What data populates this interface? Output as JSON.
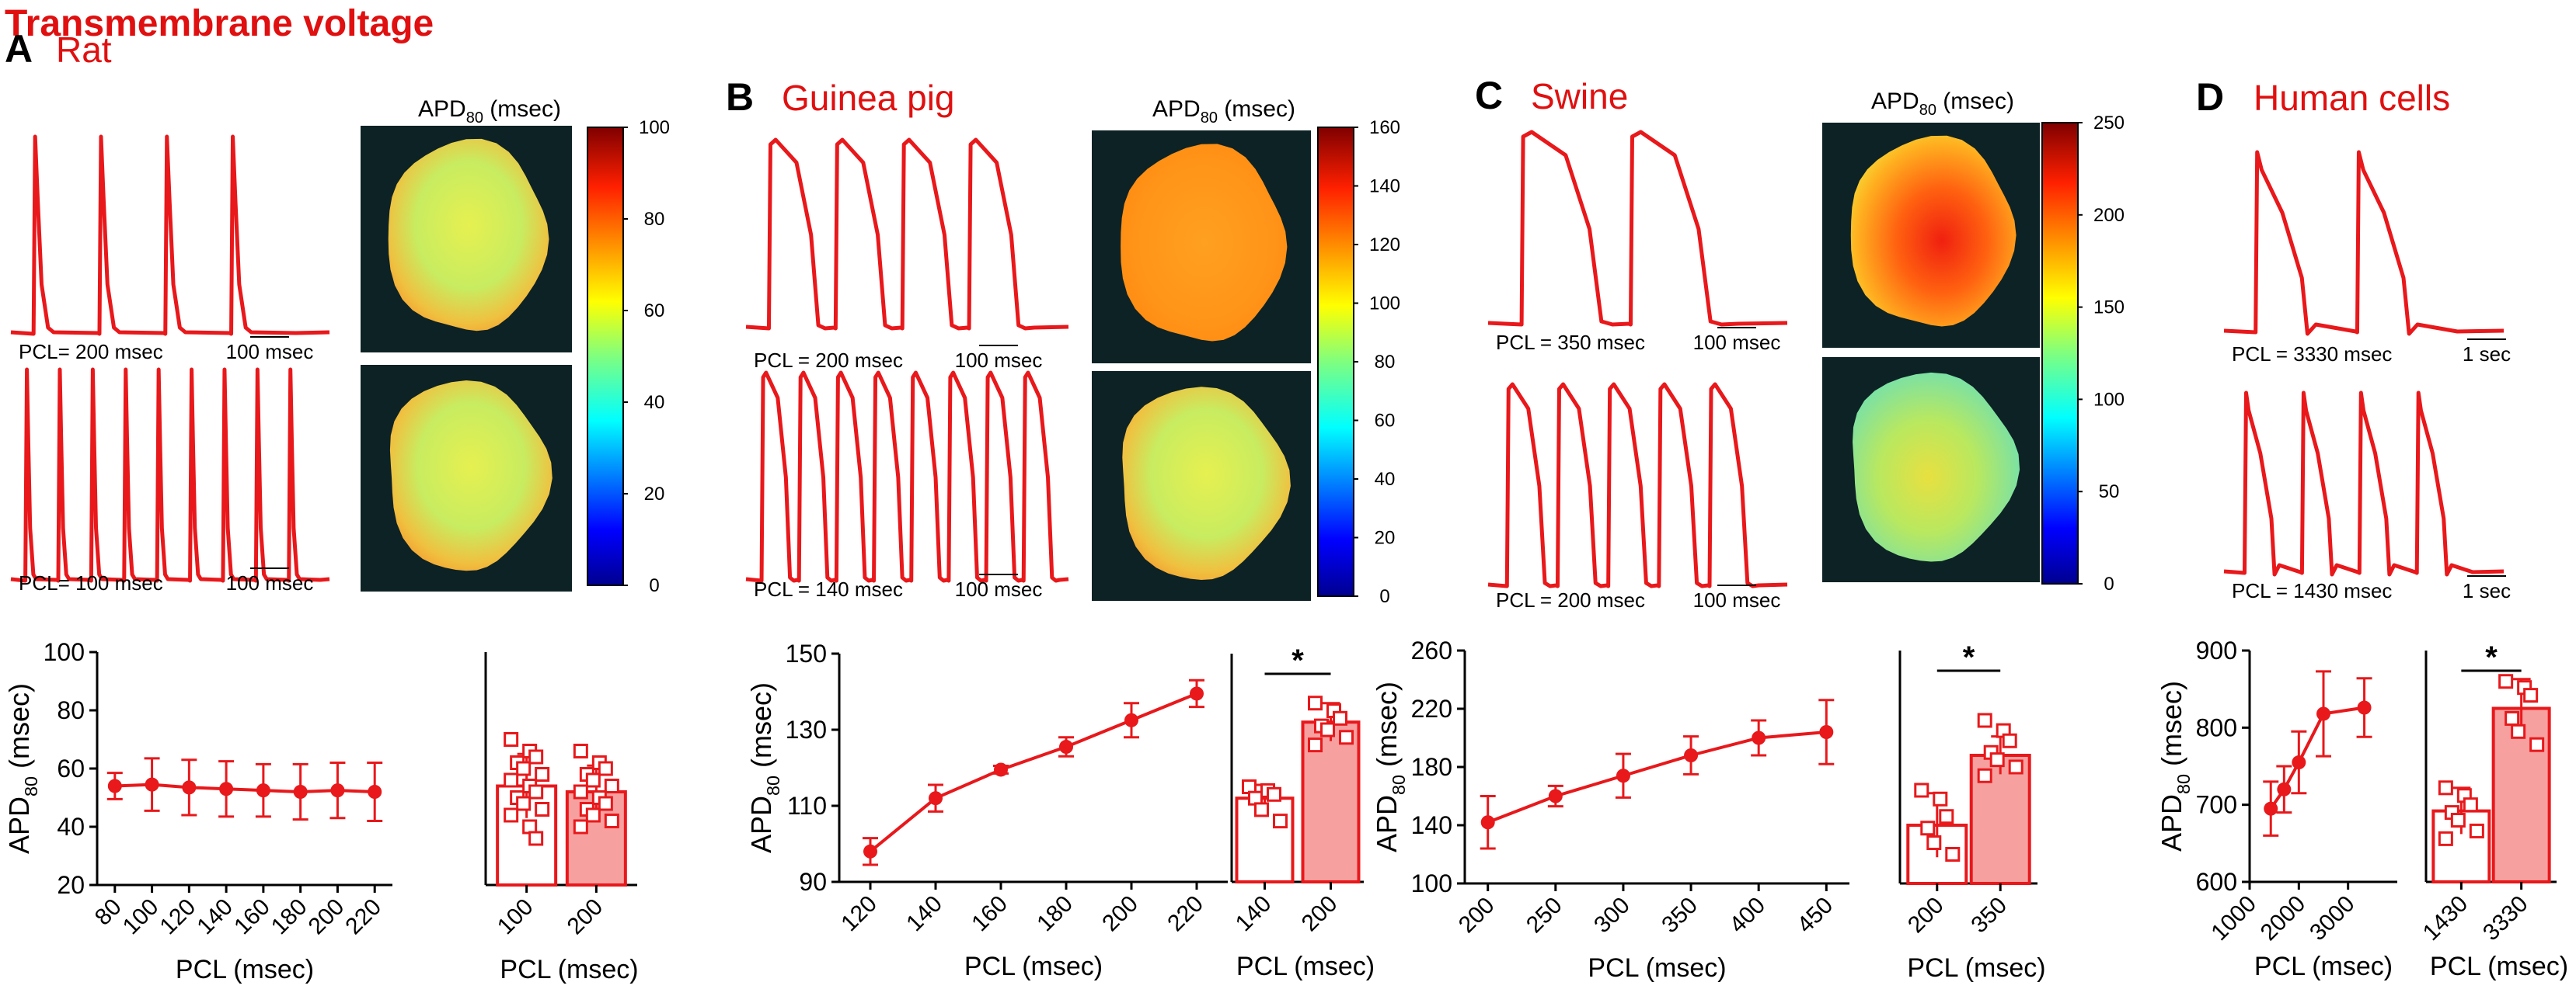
{
  "figure_title": "Transmembrane voltage",
  "colors": {
    "trace": "#e8181b",
    "title": "#e01010",
    "bar_fill": "#f7a0a0",
    "map_bg": "#0d2225",
    "axis": "#000000"
  },
  "colorbar_label": "APD",
  "colorbar_sub": "80",
  "colorbar_unit": " (msec)",
  "apd_axis": {
    "label": "APD",
    "sub": "80",
    "unit": " (msec)"
  },
  "panels": [
    {
      "letter": "A",
      "species": "Rat",
      "traces": [
        {
          "pcl_label": "PCL= 200 msec",
          "scale_label": "100 msec",
          "beats": 4
        },
        {
          "pcl_label": "PCL= 100 msec",
          "scale_label": "100 msec",
          "beats": 9
        }
      ],
      "colorbar": {
        "ticks": [
          "100",
          "80",
          "60",
          "40",
          "20",
          "0"
        ]
      },
      "maps": [
        "yellow-green",
        "yellow-green"
      ]
    },
    {
      "letter": "B",
      "species": "Guinea pig",
      "traces": [
        {
          "pcl_label": "PCL = 200 msec",
          "scale_label": "100 msec",
          "beats": 4
        },
        {
          "pcl_label": "PCL = 140 msec",
          "scale_label": "100 msec",
          "beats": 8
        }
      ],
      "colorbar": {
        "ticks": [
          "160",
          "140",
          "120",
          "100",
          "80",
          "60",
          "40",
          "20",
          "0"
        ]
      },
      "maps": [
        "orange",
        "yellow-green"
      ]
    },
    {
      "letter": "C",
      "species": "Swine",
      "traces": [
        {
          "pcl_label": "PCL = 350 msec",
          "scale_label": "100 msec",
          "beats": 2
        },
        {
          "pcl_label": "PCL = 200 msec",
          "scale_label": "100 msec",
          "beats": 5
        }
      ],
      "colorbar": {
        "ticks": [
          "250",
          "200",
          "150",
          "100",
          "50",
          "0"
        ]
      },
      "maps": [
        "orange-red",
        "green-yellow"
      ]
    },
    {
      "letter": "D",
      "species": "Human cells",
      "traces": [
        {
          "pcl_label": "PCL = 3330 msec",
          "scale_label": "1 sec",
          "beats": 2
        },
        {
          "pcl_label": "PCL = 1430 msec",
          "scale_label": "1 sec",
          "beats": 4
        }
      ]
    }
  ],
  "chart_data": [
    {
      "type": "line",
      "panel": "A",
      "title": "",
      "xlabel": "PCL (msec)",
      "ylabel": "APD80 (msec)",
      "x": [
        80,
        100,
        120,
        140,
        160,
        180,
        200,
        220
      ],
      "xticks": [
        "80",
        "100",
        "120",
        "140",
        "160",
        "180",
        "200",
        "220"
      ],
      "y": [
        54,
        54.5,
        53.5,
        53,
        52.5,
        52,
        52.5,
        52
      ],
      "err": [
        4.5,
        9,
        9.5,
        9.5,
        9,
        9.5,
        9.5,
        10
      ],
      "ylim": [
        20,
        100
      ],
      "yticks": [
        "20",
        "40",
        "60",
        "80",
        "100"
      ]
    },
    {
      "type": "bar",
      "panel": "A",
      "title": "",
      "xlabel": "PCL (msec)",
      "categories": [
        "100",
        "200"
      ],
      "values": [
        54,
        52
      ],
      "err": [
        11,
        9
      ],
      "points": [
        [
          70,
          66,
          64,
          62,
          60,
          58,
          56,
          54,
          52,
          50,
          48,
          46,
          44,
          40,
          36
        ],
        [
          66,
          62,
          60,
          58,
          56,
          54,
          52,
          50,
          48,
          46,
          44,
          42,
          40
        ]
      ],
      "significance": "",
      "ylim": [
        20,
        100
      ]
    },
    {
      "type": "line",
      "panel": "B",
      "title": "",
      "xlabel": "PCL (msec)",
      "ylabel": "APD80 (msec)",
      "x": [
        120,
        140,
        160,
        180,
        200,
        220
      ],
      "xticks": [
        "120",
        "140",
        "160",
        "180",
        "200",
        "220"
      ],
      "y": [
        98,
        112,
        119.5,
        125.5,
        132.5,
        139.5
      ],
      "err": [
        3.5,
        3.5,
        1,
        2.5,
        4.5,
        3.5
      ],
      "ylim": [
        90,
        150
      ],
      "yticks": [
        "90",
        "110",
        "130",
        "150"
      ]
    },
    {
      "type": "bar",
      "panel": "B",
      "title": "",
      "xlabel": "PCL (msec)",
      "categories": [
        "140",
        "200"
      ],
      "values": [
        112,
        132
      ],
      "err": [
        3.5,
        5
      ],
      "points": [
        [
          115,
          114,
          113,
          112,
          109,
          106
        ],
        [
          137,
          135,
          133,
          131,
          130,
          128,
          126
        ]
      ],
      "significance": "*",
      "ylim": [
        90,
        150
      ]
    },
    {
      "type": "line",
      "panel": "C",
      "title": "",
      "xlabel": "PCL (msec)",
      "ylabel": "APD80 (msec)",
      "x": [
        200,
        250,
        300,
        350,
        400,
        450
      ],
      "xticks": [
        "200",
        "250",
        "300",
        "350",
        "400",
        "450"
      ],
      "y": [
        142,
        160,
        174,
        188,
        200,
        204
      ],
      "err": [
        18,
        7,
        15,
        13,
        12,
        22
      ],
      "ylim": [
        100,
        260
      ],
      "yticks": [
        "100",
        "140",
        "180",
        "220",
        "260"
      ]
    },
    {
      "type": "bar",
      "panel": "C",
      "title": "",
      "xlabel": "PCL (msec)",
      "categories": [
        "200",
        "350"
      ],
      "values": [
        140,
        188
      ],
      "err": [
        22,
        13
      ],
      "points": [
        [
          164,
          158,
          146,
          138,
          128,
          120
        ],
        [
          212,
          205,
          198,
          190,
          185,
          180,
          174
        ]
      ],
      "significance": "*",
      "ylim": [
        100,
        260
      ]
    },
    {
      "type": "line",
      "panel": "D",
      "title": "",
      "xlabel": "PCL (msec)",
      "ylabel": "APD80 (msec)",
      "x": [
        1430,
        1700,
        2000,
        2500,
        3330
      ],
      "xticks": [
        "1000",
        "2000",
        "3000"
      ],
      "xlim": [
        1000,
        4000
      ],
      "y": [
        695,
        720,
        755,
        818,
        826
      ],
      "err": [
        35,
        30,
        40,
        55,
        38
      ],
      "ylim": [
        600,
        900
      ],
      "yticks": [
        "600",
        "700",
        "800",
        "900"
      ]
    },
    {
      "type": "bar",
      "panel": "D",
      "title": "",
      "xlabel": "PCL (msec)",
      "categories": [
        "1430",
        "3330"
      ],
      "values": [
        692,
        825
      ],
      "err": [
        30,
        38
      ],
      "points": [
        [
          722,
          712,
          700,
          690,
          680,
          666,
          656
        ],
        [
          860,
          852,
          842,
          812,
          795,
          778
        ]
      ],
      "significance": "*",
      "ylim": [
        600,
        900
      ]
    }
  ]
}
